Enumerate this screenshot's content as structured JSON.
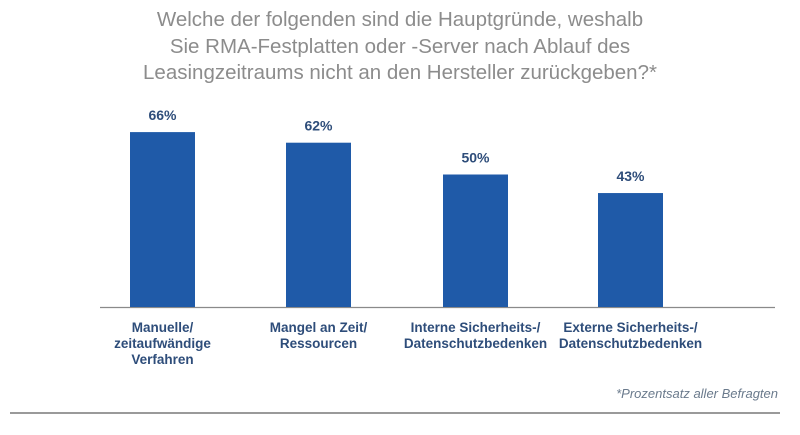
{
  "chart_data": {
    "type": "bar",
    "title_lines": [
      "Welche der folgenden sind die Hauptgründe, weshalb",
      "Sie RMA-Festplatten oder -Server nach Ablauf des",
      "Leasingzeitraums nicht an den Hersteller zurückgeben?*"
    ],
    "categories": [
      [
        "Manuelle/",
        "zeitaufwändige",
        "Verfahren"
      ],
      [
        "Mangel an Zeit/",
        "Ressourcen"
      ],
      [
        "Interne Sicherheits-/",
        "Datenschutzbedenken"
      ],
      [
        "Externe Sicherheits-/",
        "Datenschutzbedenken"
      ]
    ],
    "values": [
      66,
      62,
      50,
      43
    ],
    "data_labels": [
      "66%",
      "62%",
      "50%",
      "43%"
    ],
    "ylim": [
      0,
      100
    ],
    "grid": false,
    "bar_color": "#1f5aa8",
    "label_color": "#2e4d7a",
    "footnote": "*Prozentsatz aller Befragten"
  }
}
